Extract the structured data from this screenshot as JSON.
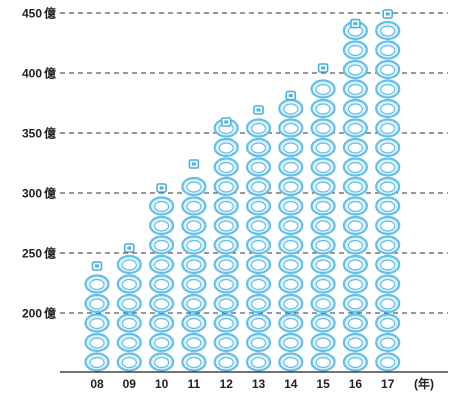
{
  "chart_data": {
    "type": "bar",
    "title": "",
    "xlabel": "",
    "ylabel": "",
    "y_unit": "億",
    "x_unit": "(年)",
    "categories": [
      "08",
      "09",
      "10",
      "11",
      "12",
      "13",
      "14",
      "15",
      "16",
      "17"
    ],
    "values": [
      240,
      255,
      305,
      325,
      360,
      370,
      382,
      405,
      442,
      450
    ],
    "ylim": [
      150,
      450
    ],
    "yticks": [
      200,
      250,
      300,
      350,
      400,
      450
    ],
    "ytick_labels": [
      "200",
      "250",
      "300",
      "350",
      "400",
      "450"
    ],
    "grid": true,
    "legend": "none",
    "colors": {
      "stack_outline": "#66bfe8",
      "stack_fill": "#dff3fc",
      "cap": "#4aaee0",
      "grid": "#333333",
      "axis": "#222222"
    },
    "icon": "stacked-coin-ring-icon"
  }
}
